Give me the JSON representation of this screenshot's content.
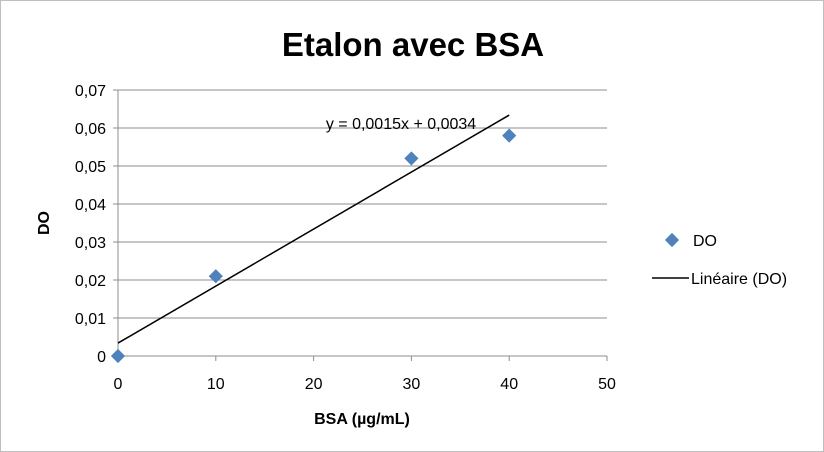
{
  "chart_data": {
    "type": "scatter",
    "title": "Etalon avec BSA",
    "xlabel": "BSA (µg/mL)",
    "ylabel": "DO",
    "xlim": [
      0,
      50
    ],
    "ylim": [
      0,
      0.07
    ],
    "x_ticks": [
      "0",
      "10",
      "20",
      "30",
      "40",
      "50"
    ],
    "y_ticks": [
      "0",
      "0,01",
      "0,02",
      "0,03",
      "0,04",
      "0,05",
      "0,06",
      "0,07"
    ],
    "grid": "horizontal",
    "legend_position": "right",
    "series": [
      {
        "name": "DO",
        "marker": "diamond",
        "color": "#4f81bd",
        "x": [
          0,
          10,
          30,
          40
        ],
        "y": [
          0,
          0.021,
          0.052,
          0.058
        ]
      }
    ],
    "trendline": {
      "name": "Linéaire (DO)",
      "type": "linear",
      "slope": 0.0015,
      "intercept": 0.0034,
      "x_range": [
        0,
        40
      ],
      "color": "#000000",
      "equation_label": "y = 0,0015x + 0,0034"
    }
  }
}
